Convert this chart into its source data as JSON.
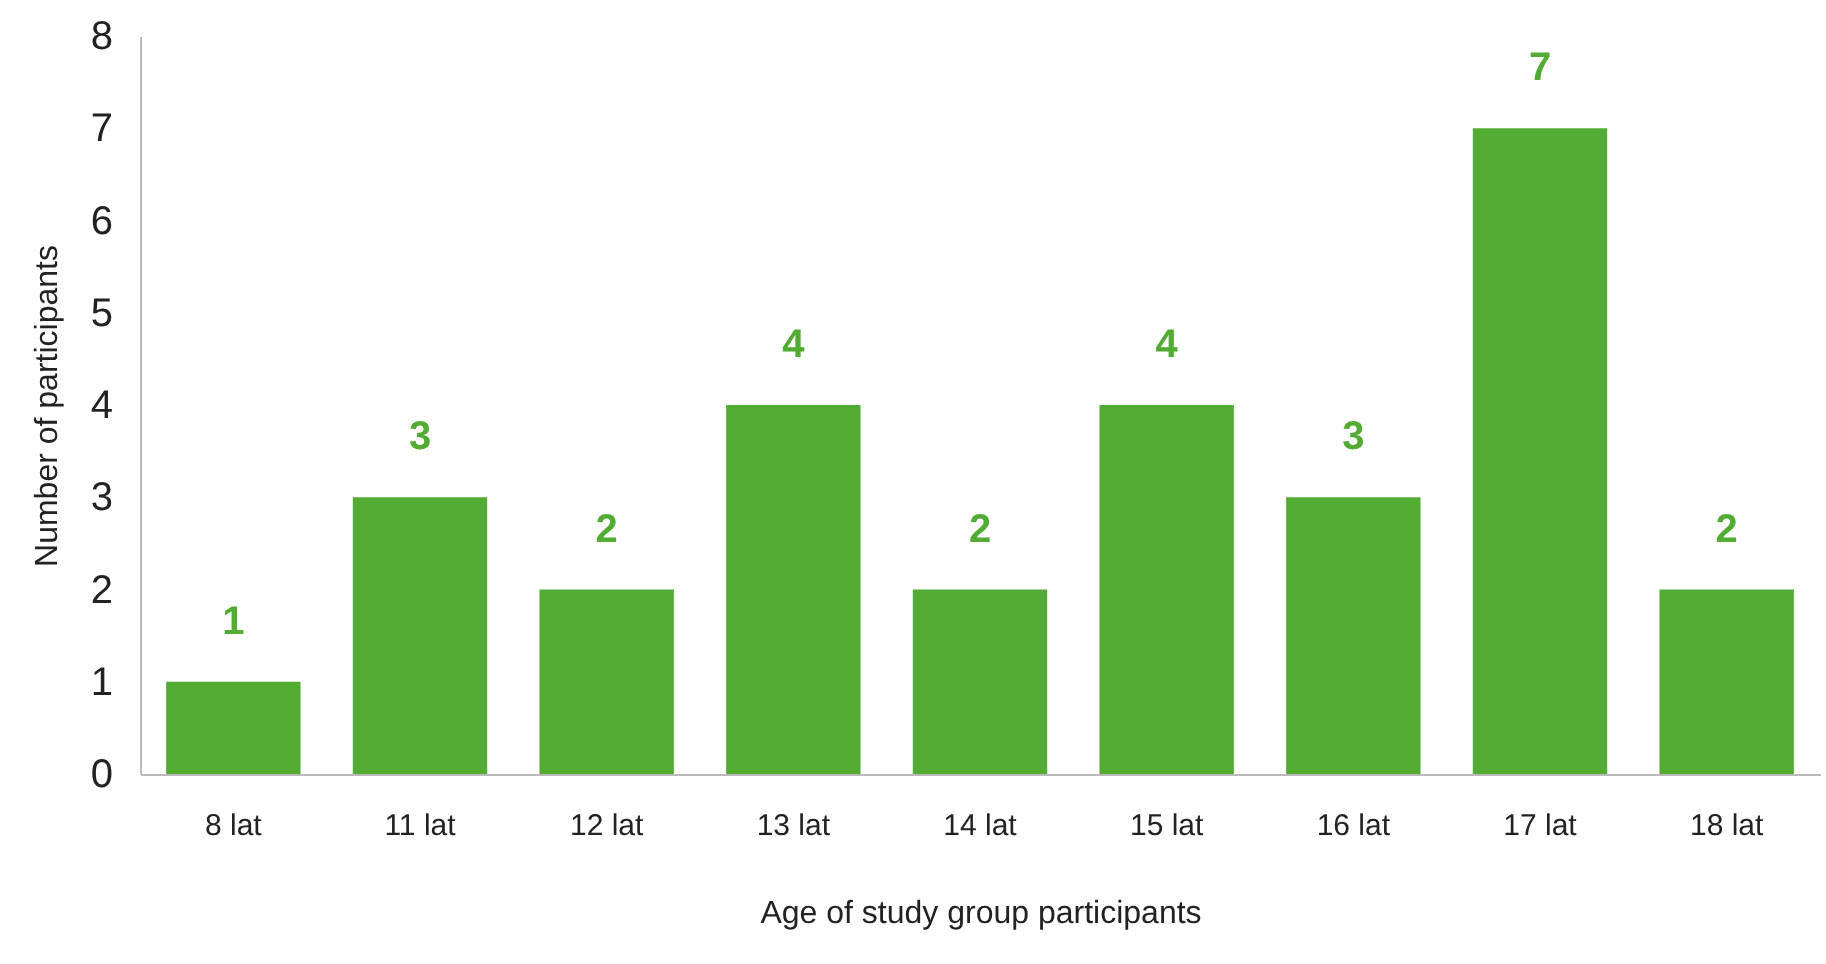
{
  "chart_data": {
    "type": "bar",
    "xlabel": "Age of study group participants",
    "ylabel": "Number of participants",
    "categories": [
      "8 lat",
      "11 lat",
      "12 lat",
      "13 lat",
      "14 lat",
      "15 lat",
      "16 lat",
      "17 lat",
      "18 lat"
    ],
    "values": [
      1,
      3,
      2,
      4,
      2,
      4,
      3,
      7,
      2
    ],
    "color": "#52ac33",
    "ylim": [
      0,
      8
    ],
    "yticks": [
      0,
      1,
      2,
      3,
      4,
      5,
      6,
      7,
      8
    ],
    "data_labels": true,
    "grid": false
  }
}
